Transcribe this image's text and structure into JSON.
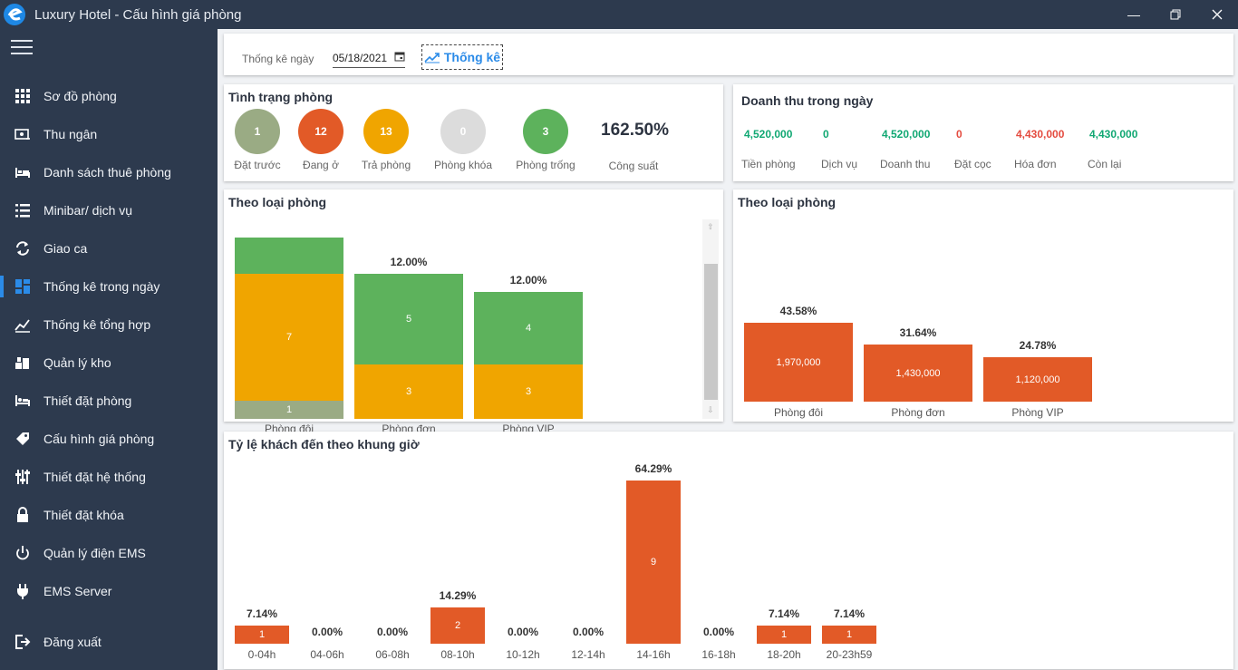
{
  "app": {
    "title": "Luxury Hotel - Cấu hình giá phòng"
  },
  "colors": {
    "sidebar": "#2d3a4e",
    "accent": "#2b8be8",
    "orange": "#e25a27",
    "amber": "#f0a500",
    "green": "#5db25c",
    "olive": "#9aab84",
    "gray": "#dcdcdc",
    "teal": "#11a873",
    "red": "#e44b3f"
  },
  "sidebar": {
    "items": [
      {
        "label": "Sơ đồ phòng",
        "icon": "grid-icon"
      },
      {
        "label": "Thu ngân",
        "icon": "cash-icon"
      },
      {
        "label": "Danh sách thuê phòng",
        "icon": "bed-icon"
      },
      {
        "label": "Minibar/ dịch vụ",
        "icon": "list-icon"
      },
      {
        "label": "Giao ca",
        "icon": "refresh-icon"
      },
      {
        "label": "Thống kê trong ngày",
        "icon": "dashboard-icon",
        "active": true
      },
      {
        "label": "Thống kê tổng hợp",
        "icon": "chart-line-icon"
      },
      {
        "label": "Quản lý kho",
        "icon": "warehouse-icon"
      },
      {
        "label": "Thiết đặt phòng",
        "icon": "room-setting-icon"
      },
      {
        "label": "Cấu hình giá phòng",
        "icon": "tag-icon"
      },
      {
        "label": "Thiết đặt hệ thống",
        "icon": "sliders-icon"
      },
      {
        "label": "Thiết đặt khóa",
        "icon": "lock-icon"
      },
      {
        "label": "Quản lý điện EMS",
        "icon": "power-icon"
      },
      {
        "label": "EMS Server",
        "icon": "plug-icon"
      },
      {
        "label": "Đăng xuất",
        "icon": "logout-icon"
      }
    ]
  },
  "filter": {
    "label": "Thống kê ngày",
    "date": "05/18/2021",
    "button": "Thống kê"
  },
  "room_status": {
    "title": "Tình trạng phòng",
    "items": [
      {
        "value": "1",
        "label": "Đặt trước"
      },
      {
        "value": "12",
        "label": "Đang ở"
      },
      {
        "value": "13",
        "label": "Trả phòng"
      },
      {
        "value": "0",
        "label": "Phòng khóa"
      },
      {
        "value": "3",
        "label": "Phòng trống"
      }
    ],
    "capacity": {
      "value": "162.50%",
      "label": "Công suất"
    }
  },
  "revenue": {
    "title": "Doanh thu trong ngày",
    "items": [
      {
        "value": "4,520,000",
        "label": "Tiền phòng"
      },
      {
        "value": "0",
        "label": "Dịch vụ"
      },
      {
        "value": "4,520,000",
        "label": "Doanh thu"
      },
      {
        "value": "0",
        "label": "Đặt cọc"
      },
      {
        "value": "4,430,000",
        "label": "Hóa đơn"
      },
      {
        "value": "4,430,000",
        "label": "Còn lại"
      }
    ]
  },
  "chart_data": [
    {
      "type": "bar",
      "title": "Theo loại phòng",
      "stacked": true,
      "categories": [
        "Phòng đôi",
        "Phòng đơn",
        "Phòng VIP"
      ],
      "series": [
        {
          "values": [
            1,
            0,
            0
          ],
          "color": "#9aab84"
        },
        {
          "values": [
            7,
            3,
            3
          ],
          "color": "#f0a500"
        },
        {
          "values": [
            2,
            5,
            4
          ],
          "color": "#5db25c"
        }
      ],
      "segment_labels": [
        [
          "1",
          "7",
          ""
        ],
        [
          "",
          "3",
          "5"
        ],
        [
          "",
          "3",
          "4"
        ]
      ],
      "percent_labels": [
        "",
        "12.00%",
        "12.00%"
      ],
      "ylim": [
        0,
        10
      ]
    },
    {
      "type": "bar",
      "title": "Theo loại phòng",
      "categories": [
        "Phòng đôi",
        "Phòng đơn",
        "Phòng VIP"
      ],
      "values": [
        1970000,
        1430000,
        1120000
      ],
      "value_labels": [
        "1,970,000",
        "1,430,000",
        "1,120,000"
      ],
      "percent_labels": [
        "43.58%",
        "31.64%",
        "24.78%"
      ],
      "ylim": [
        0,
        2400000
      ]
    },
    {
      "type": "bar",
      "title": "Tỷ lệ khách đến theo khung giờ",
      "categories": [
        "0-04h",
        "04-06h",
        "06-08h",
        "08-10h",
        "10-12h",
        "12-14h",
        "14-16h",
        "16-18h",
        "18-20h",
        "20-23h59"
      ],
      "values": [
        1,
        0,
        0,
        2,
        0,
        0,
        9,
        0,
        1,
        1
      ],
      "percent_labels": [
        "7.14%",
        "0.00%",
        "0.00%",
        "14.29%",
        "0.00%",
        "0.00%",
        "64.29%",
        "0.00%",
        "7.14%",
        "7.14%"
      ],
      "ylim": [
        0,
        9
      ]
    }
  ]
}
